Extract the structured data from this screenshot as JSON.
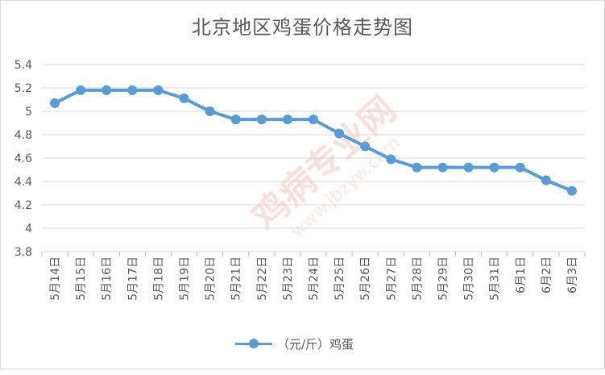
{
  "chart_data": {
    "type": "line",
    "title": "北京地区鸡蛋价格走势图",
    "categories": [
      "5月14日",
      "5月15日",
      "5月16日",
      "5月17日",
      "5月18日",
      "5月19日",
      "5月20日",
      "5月21日",
      "5月22日",
      "5月23日",
      "5月24日",
      "5月25日",
      "5月26日",
      "5月27日",
      "5月28日",
      "5月29日",
      "5月30日",
      "5月31日",
      "6月1日",
      "6月2日",
      "6月3日"
    ],
    "series": [
      {
        "name": "（元/斤）鸡蛋",
        "color": "#5b9bd5",
        "values": [
          5.07,
          5.18,
          5.18,
          5.18,
          5.18,
          5.11,
          5.0,
          4.93,
          4.93,
          4.93,
          4.93,
          4.81,
          4.7,
          4.59,
          4.52,
          4.52,
          4.52,
          4.52,
          4.52,
          4.41,
          4.32
        ]
      }
    ],
    "ylim": [
      3.8,
      5.4
    ],
    "yticks": [
      3.8,
      4,
      4.2,
      4.4,
      4.6,
      4.8,
      5,
      5.2,
      5.4
    ],
    "ytick_labels": [
      "3.8",
      "4",
      "4.2",
      "4.4",
      "4.6",
      "4.8",
      "5",
      "5.2",
      "5.4"
    ],
    "grid": true,
    "legend_position": "bottom"
  },
  "watermark": {
    "line1": "鸡病专业网",
    "line2": "www.jbzyw.com"
  }
}
